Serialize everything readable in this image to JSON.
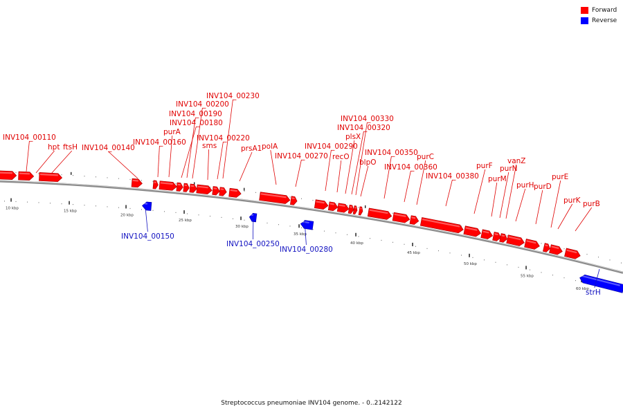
{
  "legend": {
    "forward_label": "Forward",
    "reverse_label": "Reverse",
    "forward_color": "#ff0000",
    "reverse_color": "#0000ff"
  },
  "caption": "Streptococcus pneumoniae INV104 genome. - 0..2142122",
  "colors": {
    "forward": "#ff0000",
    "reverse": "#0000ff",
    "backbone": "#8c8c8c"
  },
  "scale_ticks": [
    "10 kbp",
    "15 kbp",
    "20 kbp",
    "25 kbp",
    "30 kbp",
    "35 kbp",
    "40 kbp",
    "45 kbp",
    "50 kbp",
    "55 kbp",
    "60 kbp"
  ],
  "forward_labels": [
    "INV104_00110",
    "hpt",
    "ftsH",
    "INV104_00140",
    "INV104_00160",
    "purA",
    "INV104_00180",
    "INV104_00190",
    "INV104_00200",
    "INV104_00230",
    "sms",
    "INV104_00220",
    "prsA1",
    "polA",
    "INV104_00270",
    "INV104_00290",
    "recO",
    "plsX",
    "INV104_00320",
    "INV104_00330",
    "blpO",
    "INV104_00350",
    "INV104_00360",
    "purC",
    "INV104_00380",
    "purF",
    "purM",
    "purN",
    "vanZ",
    "purH",
    "purD",
    "purE",
    "purK",
    "purB"
  ],
  "reverse_labels": [
    "INV104_00150",
    "INV104_00250",
    "INV104_00280",
    "strH"
  ]
}
